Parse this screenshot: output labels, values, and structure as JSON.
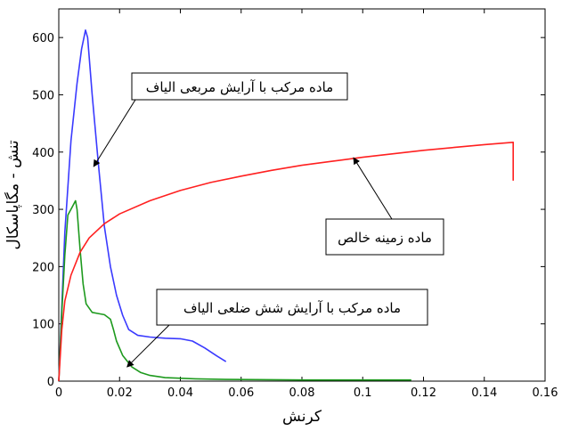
{
  "chart_data": {
    "type": "line",
    "xlabel": "کرنش",
    "ylabel": "تنش - مگاپاسکال",
    "xlim": [
      0,
      0.16
    ],
    "ylim": [
      0,
      650
    ],
    "x_ticks": [
      "0",
      "0.02",
      "0.04",
      "0.06",
      "0.08",
      "0.1",
      "0.12",
      "0.14",
      "0.16"
    ],
    "y_ticks": [
      "0",
      "100",
      "200",
      "300",
      "400",
      "500",
      "600"
    ],
    "grid": false,
    "legend": "none",
    "series": [
      {
        "name": "ماده مرکب با آرایش مربعی الیاف",
        "color": "#3a3aff",
        "points": [
          [
            0,
            0
          ],
          [
            0.002,
            260
          ],
          [
            0.004,
            420
          ],
          [
            0.006,
            520
          ],
          [
            0.0075,
            580
          ],
          [
            0.0088,
            613
          ],
          [
            0.0095,
            600
          ],
          [
            0.011,
            500
          ],
          [
            0.013,
            380
          ],
          [
            0.015,
            270
          ],
          [
            0.017,
            200
          ],
          [
            0.019,
            150
          ],
          [
            0.021,
            115
          ],
          [
            0.023,
            90
          ],
          [
            0.026,
            80
          ],
          [
            0.03,
            77
          ],
          [
            0.035,
            75
          ],
          [
            0.04,
            74
          ],
          [
            0.044,
            70
          ],
          [
            0.048,
            58
          ],
          [
            0.052,
            44
          ],
          [
            0.055,
            34
          ]
        ]
      },
      {
        "name": "ماده مرکب با آرایش شش ضلعی الیاف",
        "color": "#1e9a1e",
        "points": [
          [
            0,
            0
          ],
          [
            0.001,
            120
          ],
          [
            0.002,
            220
          ],
          [
            0.003,
            290
          ],
          [
            0.0045,
            305
          ],
          [
            0.0055,
            315
          ],
          [
            0.006,
            300
          ],
          [
            0.007,
            230
          ],
          [
            0.008,
            170
          ],
          [
            0.009,
            135
          ],
          [
            0.011,
            120
          ],
          [
            0.013,
            118
          ],
          [
            0.015,
            116
          ],
          [
            0.017,
            108
          ],
          [
            0.018,
            90
          ],
          [
            0.019,
            70
          ],
          [
            0.021,
            45
          ],
          [
            0.024,
            25
          ],
          [
            0.027,
            15
          ],
          [
            0.03,
            10
          ],
          [
            0.035,
            6
          ],
          [
            0.045,
            4
          ],
          [
            0.055,
            3
          ],
          [
            0.08,
            2
          ],
          [
            0.1,
            2
          ],
          [
            0.116,
            2
          ]
        ]
      },
      {
        "name": "ماده زمینه خالص",
        "color": "#ff2020",
        "points": [
          [
            0,
            0
          ],
          [
            0.001,
            90
          ],
          [
            0.002,
            140
          ],
          [
            0.004,
            185
          ],
          [
            0.007,
            225
          ],
          [
            0.01,
            250
          ],
          [
            0.015,
            275
          ],
          [
            0.02,
            292
          ],
          [
            0.03,
            315
          ],
          [
            0.04,
            333
          ],
          [
            0.05,
            347
          ],
          [
            0.06,
            358
          ],
          [
            0.07,
            368
          ],
          [
            0.08,
            377
          ],
          [
            0.09,
            384
          ],
          [
            0.1,
            391
          ],
          [
            0.11,
            397
          ],
          [
            0.12,
            403
          ],
          [
            0.13,
            408
          ],
          [
            0.14,
            413
          ],
          [
            0.1495,
            417
          ],
          [
            0.1495,
            350
          ]
        ]
      }
    ],
    "annotations": [
      {
        "text": "ماده مرکب با آرایش مربعی الیاف",
        "series": 0,
        "arrow_to": [
          0.0115,
          375
        ]
      },
      {
        "text": "ماده زمینه خالص",
        "series": 2,
        "arrow_to": [
          0.097,
          390
        ]
      },
      {
        "text": "ماده مرکب با آرایش شش ضلعی الیاف",
        "series": 1,
        "arrow_to": [
          0.0225,
          25
        ]
      }
    ]
  }
}
